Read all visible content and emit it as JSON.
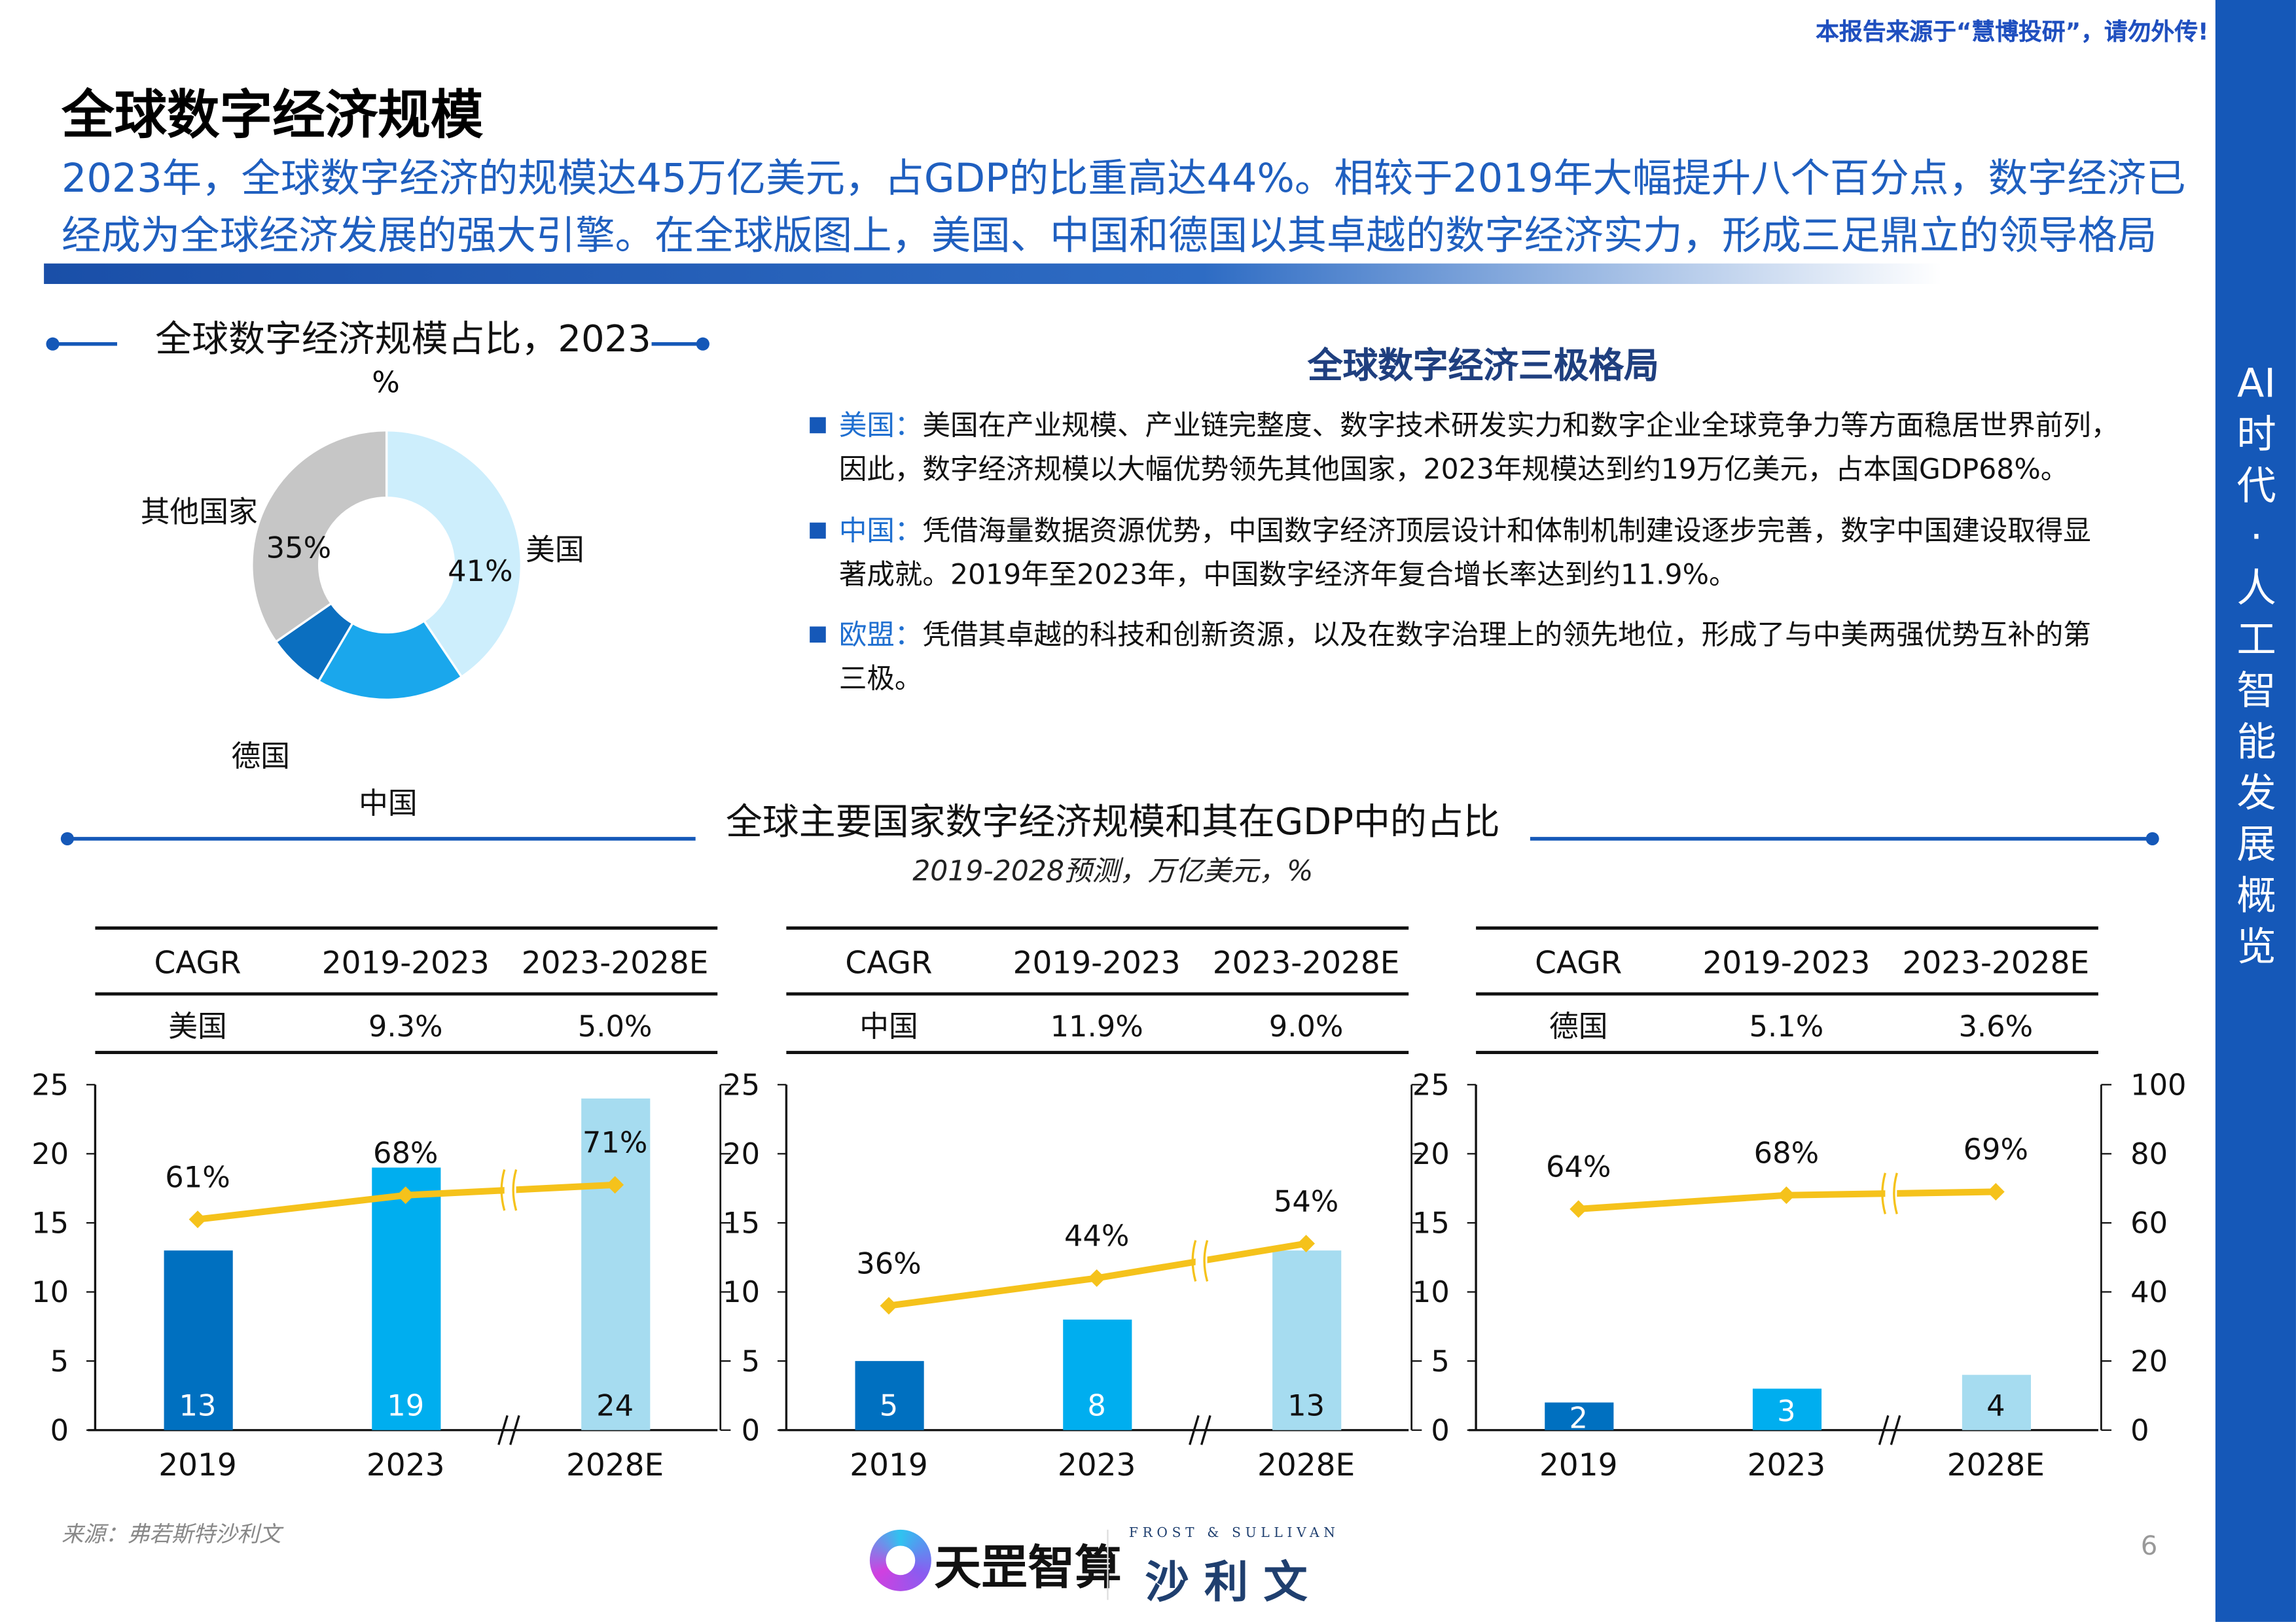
{
  "header": {
    "notice": "本报告来源于“慧博投研”，请勿外传!",
    "title": "全球数字经济规模",
    "subtitle_lines": [
      "2023年，全球数字经济的规模达45万亿美元，占GDP的比重高达44%。相较于2019年大幅提升八个百分点，数字经济已",
      "经成为全球经济发展的强大引擎。在全球版图上，美国、中国和德国以其卓越的数字经济实力，形成三足鼎立的领导格局"
    ]
  },
  "sidebar": {
    "text": "AI时代·人工智能发展概览",
    "color": "#1558b8"
  },
  "donut": {
    "title": "全球数字经济规模占比，2023",
    "unit": "%",
    "slices": [
      {
        "name": "美国",
        "value": 41,
        "label": "41%",
        "color": "#cdeefc"
      },
      {
        "name": "中国",
        "value": 18,
        "label": "18%",
        "color": "#1aa7ec"
      },
      {
        "name": "德国",
        "value": 7,
        "label": "7%",
        "color": "#0b6fc0"
      },
      {
        "name": "其他国家",
        "value": 35,
        "label": "35%",
        "color": "#c6c6c6"
      }
    ]
  },
  "tripolar": {
    "title": "全球数字经济三极格局",
    "items": [
      {
        "key": "美国：",
        "lines": [
          "美国在产业规模、产业链完整度、数字技术研发实力和数字企业全球竞争力等方面稳居世界前列，",
          "因此，数字经济规模以大幅优势领先其他国家，2023年规模达到约19万亿美元，占本国GDP68%。"
        ]
      },
      {
        "key": "中国：",
        "lines": [
          "凭借海量数据资源优势，中国数字经济顶层设计和体制机制建设逐步完善，数字中国建设取得显",
          "著成就。2019年至2023年，中国数字经济年复合增长率达到约11.9%。"
        ]
      },
      {
        "key": "欧盟：",
        "lines": [
          "凭借其卓越的科技和创新资源，以及在数字治理上的领先地位，形成了与中美两强优势互补的第",
          "三极。"
        ]
      }
    ]
  },
  "section": {
    "title": "全球主要国家数字经济规模和其在GDP中的占比",
    "subtitle": "2019-2028预测，万亿美元，%"
  },
  "chart_data": [
    {
      "type": "bar",
      "country": "美国",
      "cagr_header": [
        "CAGR",
        "2019-2023",
        "2023-2028E"
      ],
      "cagr": [
        "9.3%",
        "5.0%"
      ],
      "categories": [
        "2019",
        "2023",
        "2028E"
      ],
      "values": [
        13,
        19,
        24
      ],
      "bar_labels": [
        "13",
        "19",
        "24"
      ],
      "line": {
        "values": [
          61,
          68,
          71
        ],
        "labels": [
          "61%",
          "68%",
          "71%"
        ]
      },
      "ylim": [
        0,
        25
      ],
      "yticks": [
        "0",
        "5",
        "10",
        "15",
        "20",
        "25"
      ],
      "y2lim": [
        0,
        100
      ],
      "axis_break": true
    },
    {
      "type": "bar",
      "country": "中国",
      "cagr_header": [
        "CAGR",
        "2019-2023",
        "2023-2028E"
      ],
      "cagr": [
        "11.9%",
        "9.0%"
      ],
      "categories": [
        "2019",
        "2023",
        "2028E"
      ],
      "values": [
        5,
        8,
        13
      ],
      "bar_labels": [
        "5",
        "8",
        "13"
      ],
      "line": {
        "values": [
          36,
          44,
          54
        ],
        "labels": [
          "36%",
          "44%",
          "54%"
        ]
      },
      "ylim": [
        0,
        25
      ],
      "yticks": [
        "0",
        "5",
        "10",
        "15",
        "20",
        "25"
      ],
      "y2lim": [
        0,
        100
      ],
      "axis_break": true
    },
    {
      "type": "bar",
      "country": "德国",
      "cagr_header": [
        "CAGR",
        "2019-2023",
        "2023-2028E"
      ],
      "cagr": [
        "5.1%",
        "3.6%"
      ],
      "categories": [
        "2019",
        "2023",
        "2028E"
      ],
      "values": [
        2,
        3,
        4
      ],
      "bar_labels": [
        "2",
        "3",
        "4"
      ],
      "line": {
        "values": [
          64,
          68,
          69
        ],
        "labels": [
          "64%",
          "68%",
          "69%"
        ]
      },
      "ylim": [
        0,
        25
      ],
      "yticks": [
        "0",
        "5",
        "10",
        "15",
        "20",
        "25"
      ],
      "y2lim": [
        0,
        100
      ],
      "y2ticks": [
        "0",
        "20",
        "40",
        "60",
        "80",
        "100"
      ],
      "axis_break": true
    }
  ],
  "colors": {
    "bar_2019": "#0070c0",
    "bar_2023": "#00aeef",
    "bar_2028": "#a6dcf0",
    "line": "#f5c21b",
    "accent": "#1558b8"
  },
  "footer": {
    "source": "来源：弗若斯特沙利文",
    "logo1": "天罡智算",
    "logo2_en": "FROST & SULLIVAN",
    "logo2_cn": "沙 利 文",
    "page": "6"
  }
}
